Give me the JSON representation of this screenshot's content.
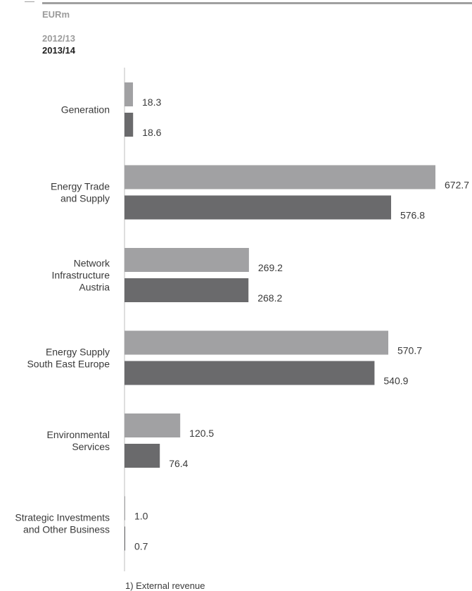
{
  "header": {
    "unit": "EURm",
    "legend_prev": "2012/13",
    "legend_curr": "2013/14"
  },
  "footnote": "1) External revenue",
  "colors": {
    "prev": "#a1a1a3",
    "curr": "#6a6a6c",
    "axis": "#bcbcbc"
  },
  "chart_data": {
    "type": "bar",
    "orientation": "horizontal",
    "unit": "EURm",
    "categories": [
      [
        "Generation"
      ],
      [
        "Energy Trade",
        "and Supply"
      ],
      [
        "Network",
        "Infrastructure",
        "Austria"
      ],
      [
        "Energy Supply",
        "South East Europe"
      ],
      [
        "Environmental",
        "Services"
      ],
      [
        "Strategic Investments",
        "and Other Business"
      ]
    ],
    "series": [
      {
        "name": "2012/13",
        "values": [
          18.3,
          672.7,
          269.2,
          570.7,
          120.5,
          1.0
        ]
      },
      {
        "name": "2013/14",
        "values": [
          18.6,
          576.8,
          268.2,
          540.9,
          76.4,
          0.7
        ]
      }
    ],
    "value_labels": [
      [
        "18.3",
        "672.7",
        "269.2",
        "570.7",
        "120.5",
        "1.0"
      ],
      [
        "18.6",
        "576.8",
        "268.2",
        "540.9",
        "76.4",
        "0.7"
      ]
    ],
    "xlim": [
      0,
      672.7
    ],
    "legend": "top-left",
    "grid": false
  }
}
